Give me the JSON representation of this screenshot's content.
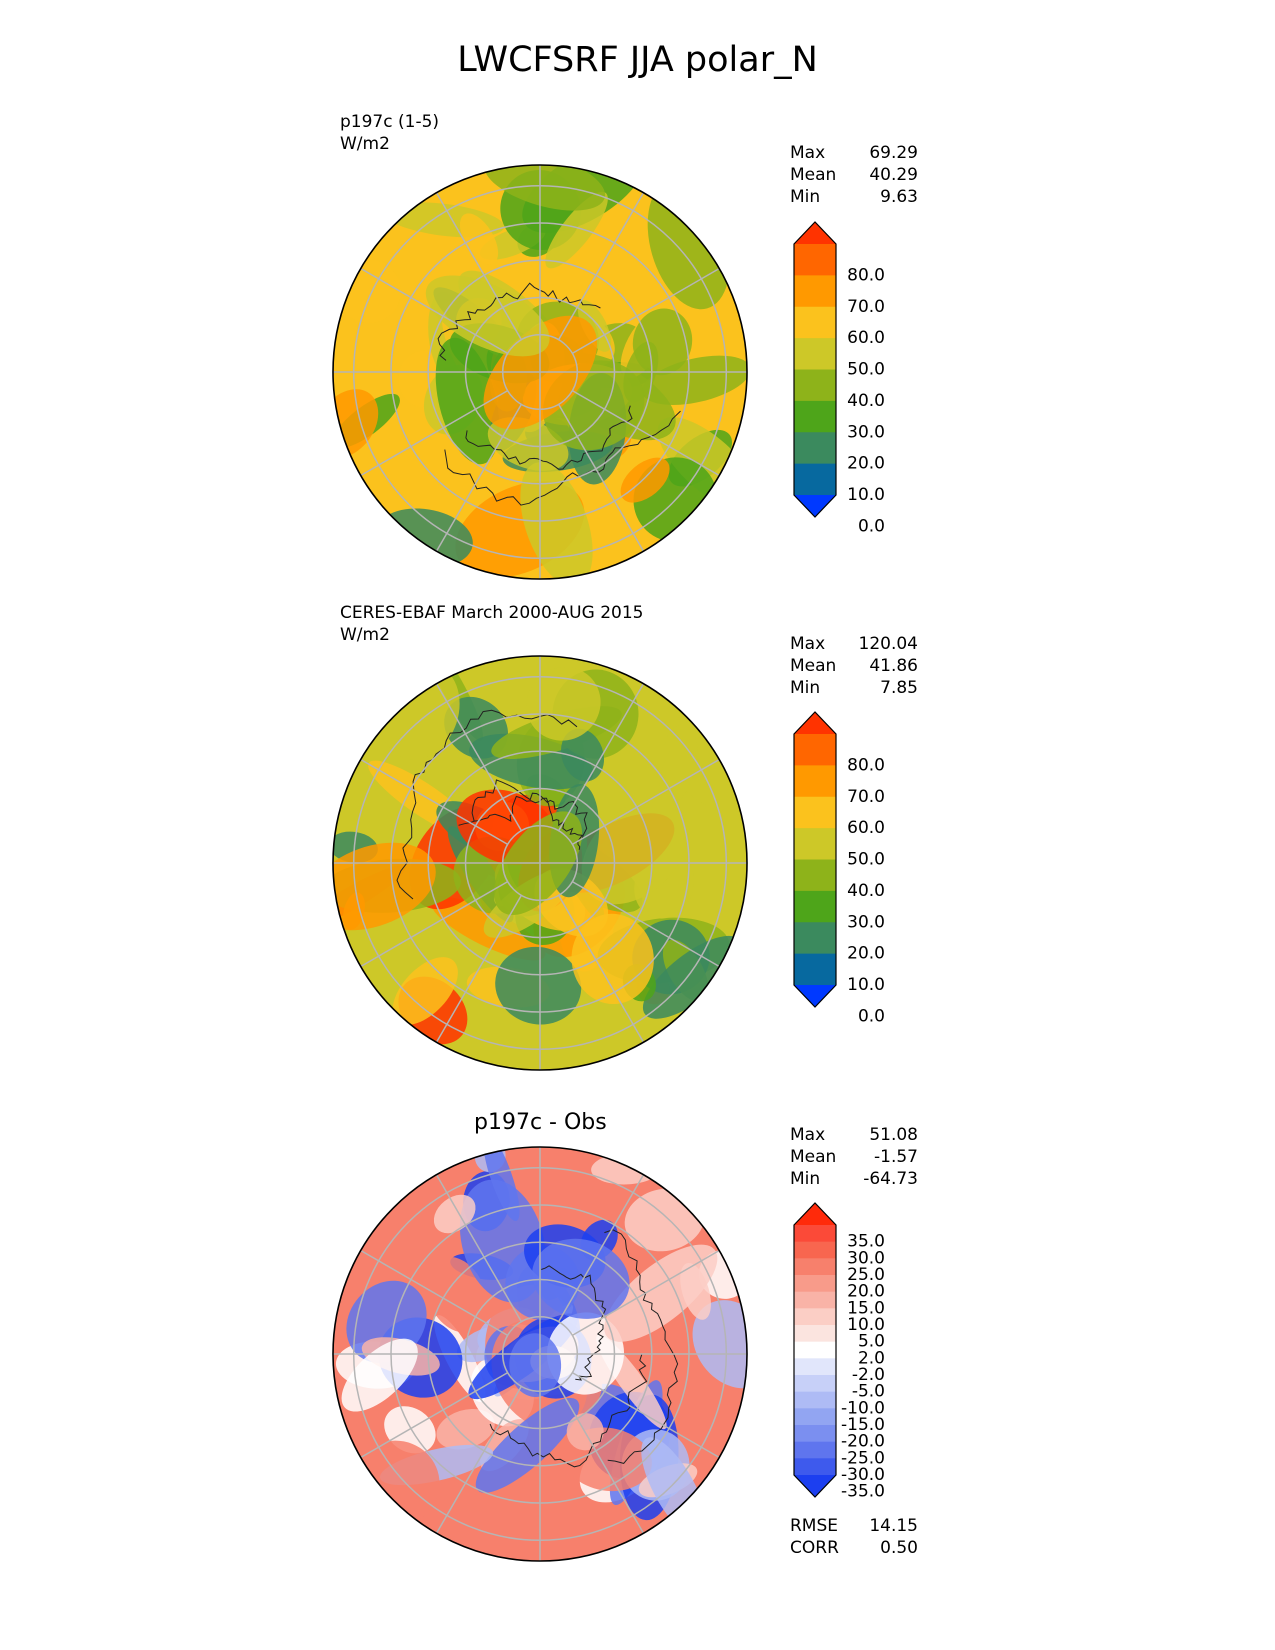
{
  "title": "LWCFSRF JJA polar_N",
  "panels": [
    {
      "label": "p197c (1-5)",
      "units": "W/m2",
      "stats": [
        {
          "name": "Max",
          "value": "69.29"
        },
        {
          "name": "Mean",
          "value": "40.29"
        },
        {
          "name": "Min",
          "value": "9.63"
        }
      ]
    },
    {
      "label": "CERES-EBAF March 2000-AUG 2015",
      "units": "W/m2",
      "stats": [
        {
          "name": "Max",
          "value": "120.04"
        },
        {
          "name": "Mean",
          "value": "41.86"
        },
        {
          "name": "Min",
          "value": "7.85"
        }
      ]
    },
    {
      "label": "p197c - Obs",
      "stats": [
        {
          "name": "Max",
          "value": "51.08"
        },
        {
          "name": "Mean",
          "value": "-1.57"
        },
        {
          "name": "Min",
          "value": "-64.73"
        }
      ],
      "metrics": [
        {
          "name": "RMSE",
          "value": "14.15"
        },
        {
          "name": "CORR",
          "value": "0.50"
        }
      ]
    }
  ],
  "chart_data": [
    {
      "type": "heatmap",
      "projection": "north polar stereographic",
      "colorbar": {
        "ticks": [
          "80.0",
          "70.0",
          "60.0",
          "50.0",
          "40.0",
          "30.0",
          "20.0",
          "10.0",
          "0.0"
        ],
        "colors": [
          "#ff3300",
          "#ff6600",
          "#ff9900",
          "#fbc21d",
          "#cdc828",
          "#8eb31a",
          "#4ea51a",
          "#3b8a5e",
          "#07699f",
          "#0039ff"
        ],
        "extend": "both"
      },
      "field_colors": [
        "#fbc21d",
        "#cdc828",
        "#8eb31a",
        "#4ea51a",
        "#3b8a5e",
        "#ff9900"
      ]
    },
    {
      "type": "heatmap",
      "projection": "north polar stereographic",
      "colorbar": {
        "ticks": [
          "80.0",
          "70.0",
          "60.0",
          "50.0",
          "40.0",
          "30.0",
          "20.0",
          "10.0",
          "0.0"
        ],
        "colors": [
          "#ff3300",
          "#ff6600",
          "#ff9900",
          "#fbc21d",
          "#cdc828",
          "#8eb31a",
          "#4ea51a",
          "#3b8a5e",
          "#07699f",
          "#0039ff"
        ],
        "extend": "both"
      },
      "field_colors": [
        "#cdc828",
        "#8eb31a",
        "#4ea51a",
        "#fbc21d",
        "#ff9900",
        "#ff3300",
        "#3b8a5e"
      ]
    },
    {
      "type": "heatmap",
      "projection": "north polar stereographic",
      "colorbar": {
        "ticks": [
          "35.0",
          "30.0",
          "25.0",
          "20.0",
          "15.0",
          "10.0",
          "5.0",
          "2.0",
          "-2.0",
          "-5.0",
          "-10.0",
          "-15.0",
          "-20.0",
          "-25.0",
          "-30.0",
          "-35.0"
        ],
        "colors": [
          "#ff2a0a",
          "#fb4a38",
          "#f8664f",
          "#f7806c",
          "#f89b8a",
          "#f9b3a7",
          "#fbcec5",
          "#fbe4df",
          "#ffffff",
          "#e1e6fb",
          "#c7d0f8",
          "#aebbf5",
          "#92a5f2",
          "#7b8ff0",
          "#5f75ee",
          "#3e5aed",
          "#1c3ff0"
        ],
        "extend": "both"
      },
      "field_colors": [
        "#f7806c",
        "#f9b3a7",
        "#ffffff",
        "#aebbf5",
        "#5f75ee",
        "#fbcec5",
        "#1c3ff0"
      ]
    }
  ]
}
